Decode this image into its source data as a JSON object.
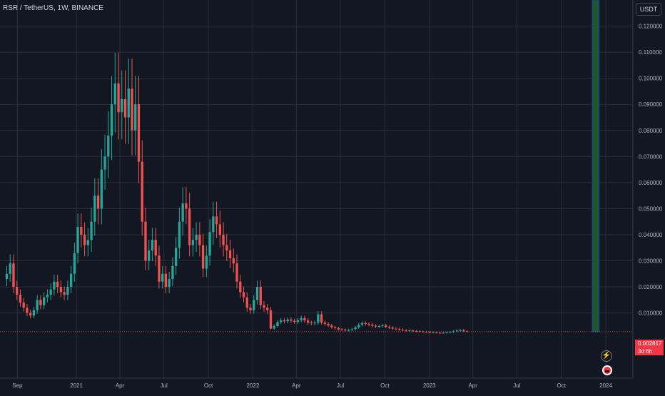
{
  "header": {
    "symbol_line": "RSR / TetherUS, 1W, BINANCE"
  },
  "currency": {
    "label": "USDT"
  },
  "price_tag": {
    "price": "0.002817",
    "countdown": "3d 6h"
  },
  "icons": {
    "alert": "lightning-icon",
    "flag": "flag-icon"
  },
  "colors": {
    "background": "#131722",
    "grid": "#2a2e39",
    "up": "#26a69a",
    "down": "#ef5350",
    "price_line": "#f23645",
    "axis_text": "#b2b5be",
    "projection_fill": "#1e5a28",
    "projection_border": "#1e3c8c"
  },
  "chart_data": {
    "type": "candlestick",
    "title": "RSR / TetherUS, 1W, BINANCE",
    "y_axis": {
      "position": "right",
      "ticks": [
        0.12,
        0.11,
        0.1,
        0.09,
        0.08,
        0.07,
        0.06,
        0.05,
        0.04,
        0.03,
        0.02,
        0.01
      ],
      "tick_labels": [
        "0.120000",
        "0.110000",
        "0.100000",
        "0.090000",
        "0.080000",
        "0.070000",
        "0.060000",
        "0.050000",
        "0.040000",
        "0.030000",
        "0.020000",
        "0.010000"
      ],
      "range": [
        -0.015,
        0.13
      ]
    },
    "x_axis": {
      "range": [
        "2020-07-27",
        "2024-02-26"
      ],
      "ticks": [
        {
          "date": "2020-09-01",
          "label": "Sep"
        },
        {
          "date": "2021-01-01",
          "label": "2021"
        },
        {
          "date": "2021-04-01",
          "label": "Apr"
        },
        {
          "date": "2021-07-01",
          "label": "Jul"
        },
        {
          "date": "2021-10-01",
          "label": "Oct"
        },
        {
          "date": "2022-01-01",
          "label": "2022"
        },
        {
          "date": "2022-04-01",
          "label": "Apr"
        },
        {
          "date": "2022-07-01",
          "label": "Jul"
        },
        {
          "date": "2022-10-01",
          "label": "Oct"
        },
        {
          "date": "2023-01-01",
          "label": "2023"
        },
        {
          "date": "2023-04-01",
          "label": "Apr"
        },
        {
          "date": "2023-07-01",
          "label": "Jul"
        },
        {
          "date": "2023-10-01",
          "label": "Oct"
        },
        {
          "date": "2024-01-01",
          "label": "2024"
        }
      ]
    },
    "start_week": "2020-08-10",
    "interval": "1W",
    "closes": [
      0.025,
      0.029,
      0.02,
      0.017,
      0.014,
      0.012,
      0.01,
      0.009,
      0.011,
      0.015,
      0.013,
      0.016,
      0.017,
      0.019,
      0.022,
      0.02,
      0.018,
      0.017,
      0.02,
      0.025,
      0.033,
      0.043,
      0.04,
      0.036,
      0.038,
      0.045,
      0.055,
      0.05,
      0.065,
      0.07,
      0.078,
      0.09,
      0.098,
      0.087,
      0.092,
      0.085,
      0.096,
      0.08,
      0.09,
      0.068,
      0.045,
      0.03,
      0.034,
      0.038,
      0.032,
      0.022,
      0.025,
      0.02,
      0.023,
      0.028,
      0.035,
      0.045,
      0.052,
      0.05,
      0.036,
      0.038,
      0.04,
      0.036,
      0.027,
      0.032,
      0.041,
      0.047,
      0.044,
      0.04,
      0.036,
      0.034,
      0.031,
      0.029,
      0.022,
      0.018,
      0.016,
      0.012,
      0.011,
      0.015,
      0.02,
      0.013,
      0.012,
      0.011,
      0.004,
      0.005,
      0.0065,
      0.0072,
      0.0068,
      0.0075,
      0.007,
      0.0066,
      0.0072,
      0.008,
      0.0071,
      0.0063,
      0.006,
      0.0063,
      0.0095,
      0.0063,
      0.0058,
      0.0052,
      0.0045,
      0.0042,
      0.0037,
      0.0036,
      0.0033,
      0.0035,
      0.0038,
      0.0045,
      0.0055,
      0.0061,
      0.0058,
      0.0055,
      0.0051,
      0.0048,
      0.005,
      0.0052,
      0.0047,
      0.0044,
      0.004,
      0.0039,
      0.0036,
      0.0034,
      0.0032,
      0.0033,
      0.0031,
      0.003,
      0.0029,
      0.0028,
      0.0027,
      0.0025,
      0.0026,
      0.0024,
      0.0023,
      0.0024,
      0.0025,
      0.0027,
      0.003,
      0.0033,
      0.0034,
      0.003,
      0.0028
    ],
    "last_price": 0.002817,
    "projection": {
      "from": "2023-12-04",
      "to": "2023-12-18",
      "top": 0.13
    }
  }
}
